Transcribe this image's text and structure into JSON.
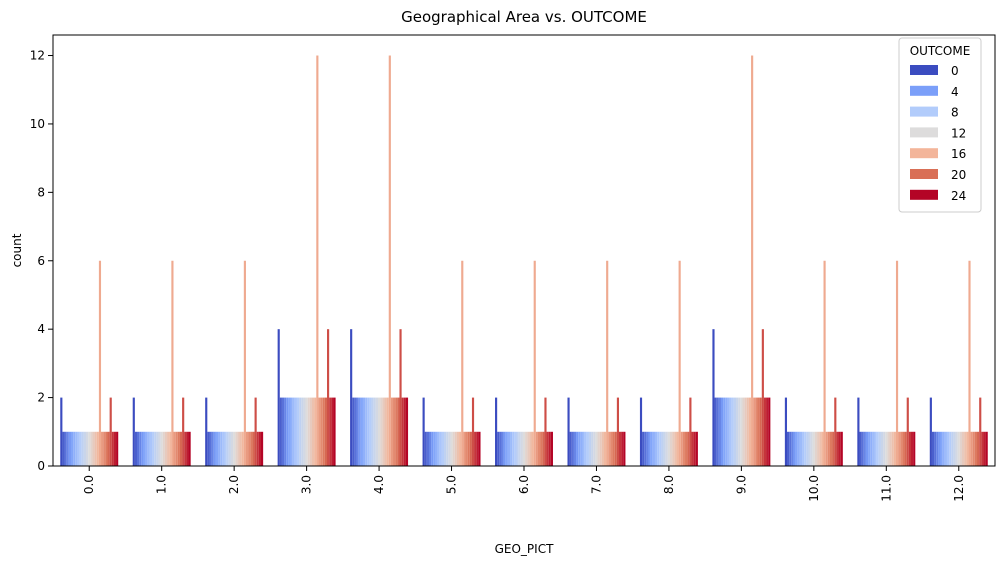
{
  "chart_data": {
    "type": "bar",
    "title": "Geographical Area vs. OUTCOME",
    "xlabel": "GEO_PICT",
    "ylabel": "count",
    "ylim": [
      0,
      12.6
    ],
    "yticks": [
      "0",
      "2",
      "4",
      "6",
      "8",
      "10",
      "12"
    ],
    "grid": false,
    "legend": {
      "title": "OUTCOME",
      "placement": "top-right",
      "entries": [
        {
          "label": "0",
          "color": "#3b4cc0"
        },
        {
          "label": "4",
          "color": "#7b9ff9"
        },
        {
          "label": "8",
          "color": "#b2ccfb"
        },
        {
          "label": "12",
          "color": "#dddcdc"
        },
        {
          "label": "16",
          "color": "#f3b59a"
        },
        {
          "label": "20",
          "color": "#d96f56"
        },
        {
          "label": "24",
          "color": "#b40426"
        }
      ]
    },
    "categories": [
      "0.0",
      "1.0",
      "2.0",
      "3.0",
      "4.0",
      "5.0",
      "6.0",
      "7.0",
      "8.0",
      "9.0",
      "10.0",
      "11.0",
      "12.0"
    ],
    "series_count": 27,
    "counts_by_category": [
      [
        2,
        1,
        1,
        1,
        1,
        1,
        1,
        1,
        1,
        1,
        1,
        1,
        1,
        1,
        1,
        1,
        1,
        1,
        6,
        1,
        1,
        1,
        1,
        2,
        1,
        1,
        1
      ],
      [
        2,
        1,
        1,
        1,
        1,
        1,
        1,
        1,
        1,
        1,
        1,
        1,
        1,
        1,
        1,
        1,
        1,
        1,
        6,
        1,
        1,
        1,
        1,
        2,
        1,
        1,
        1
      ],
      [
        2,
        1,
        1,
        1,
        1,
        1,
        1,
        1,
        1,
        1,
        1,
        1,
        1,
        1,
        1,
        1,
        1,
        1,
        6,
        1,
        1,
        1,
        1,
        2,
        1,
        1,
        1
      ],
      [
        4,
        2,
        2,
        2,
        2,
        2,
        2,
        2,
        2,
        2,
        2,
        2,
        2,
        2,
        2,
        2,
        2,
        2,
        12,
        2,
        2,
        2,
        2,
        4,
        2,
        2,
        2
      ],
      [
        4,
        2,
        2,
        2,
        2,
        2,
        2,
        2,
        2,
        2,
        2,
        2,
        2,
        2,
        2,
        2,
        2,
        2,
        12,
        2,
        2,
        2,
        2,
        4,
        2,
        2,
        2
      ],
      [
        2,
        1,
        1,
        1,
        1,
        1,
        1,
        1,
        1,
        1,
        1,
        1,
        1,
        1,
        1,
        1,
        1,
        1,
        6,
        1,
        1,
        1,
        1,
        2,
        1,
        1,
        1
      ],
      [
        2,
        1,
        1,
        1,
        1,
        1,
        1,
        1,
        1,
        1,
        1,
        1,
        1,
        1,
        1,
        1,
        1,
        1,
        6,
        1,
        1,
        1,
        1,
        2,
        1,
        1,
        1
      ],
      [
        2,
        1,
        1,
        1,
        1,
        1,
        1,
        1,
        1,
        1,
        1,
        1,
        1,
        1,
        1,
        1,
        1,
        1,
        6,
        1,
        1,
        1,
        1,
        2,
        1,
        1,
        1
      ],
      [
        2,
        1,
        1,
        1,
        1,
        1,
        1,
        1,
        1,
        1,
        1,
        1,
        1,
        1,
        1,
        1,
        1,
        1,
        6,
        1,
        1,
        1,
        1,
        2,
        1,
        1,
        1
      ],
      [
        4,
        2,
        2,
        2,
        2,
        2,
        2,
        2,
        2,
        2,
        2,
        2,
        2,
        2,
        2,
        2,
        2,
        2,
        12,
        2,
        2,
        2,
        2,
        4,
        2,
        2,
        2
      ],
      [
        2,
        1,
        1,
        1,
        1,
        1,
        1,
        1,
        1,
        1,
        1,
        1,
        1,
        1,
        1,
        1,
        1,
        1,
        6,
        1,
        1,
        1,
        1,
        2,
        1,
        1,
        1
      ],
      [
        2,
        1,
        1,
        1,
        1,
        1,
        1,
        1,
        1,
        1,
        1,
        1,
        1,
        1,
        1,
        1,
        1,
        1,
        6,
        1,
        1,
        1,
        1,
        2,
        1,
        1,
        1
      ],
      [
        2,
        1,
        1,
        1,
        1,
        1,
        1,
        1,
        1,
        1,
        1,
        1,
        1,
        1,
        1,
        1,
        1,
        1,
        6,
        1,
        1,
        1,
        1,
        2,
        1,
        1,
        1
      ]
    ]
  }
}
